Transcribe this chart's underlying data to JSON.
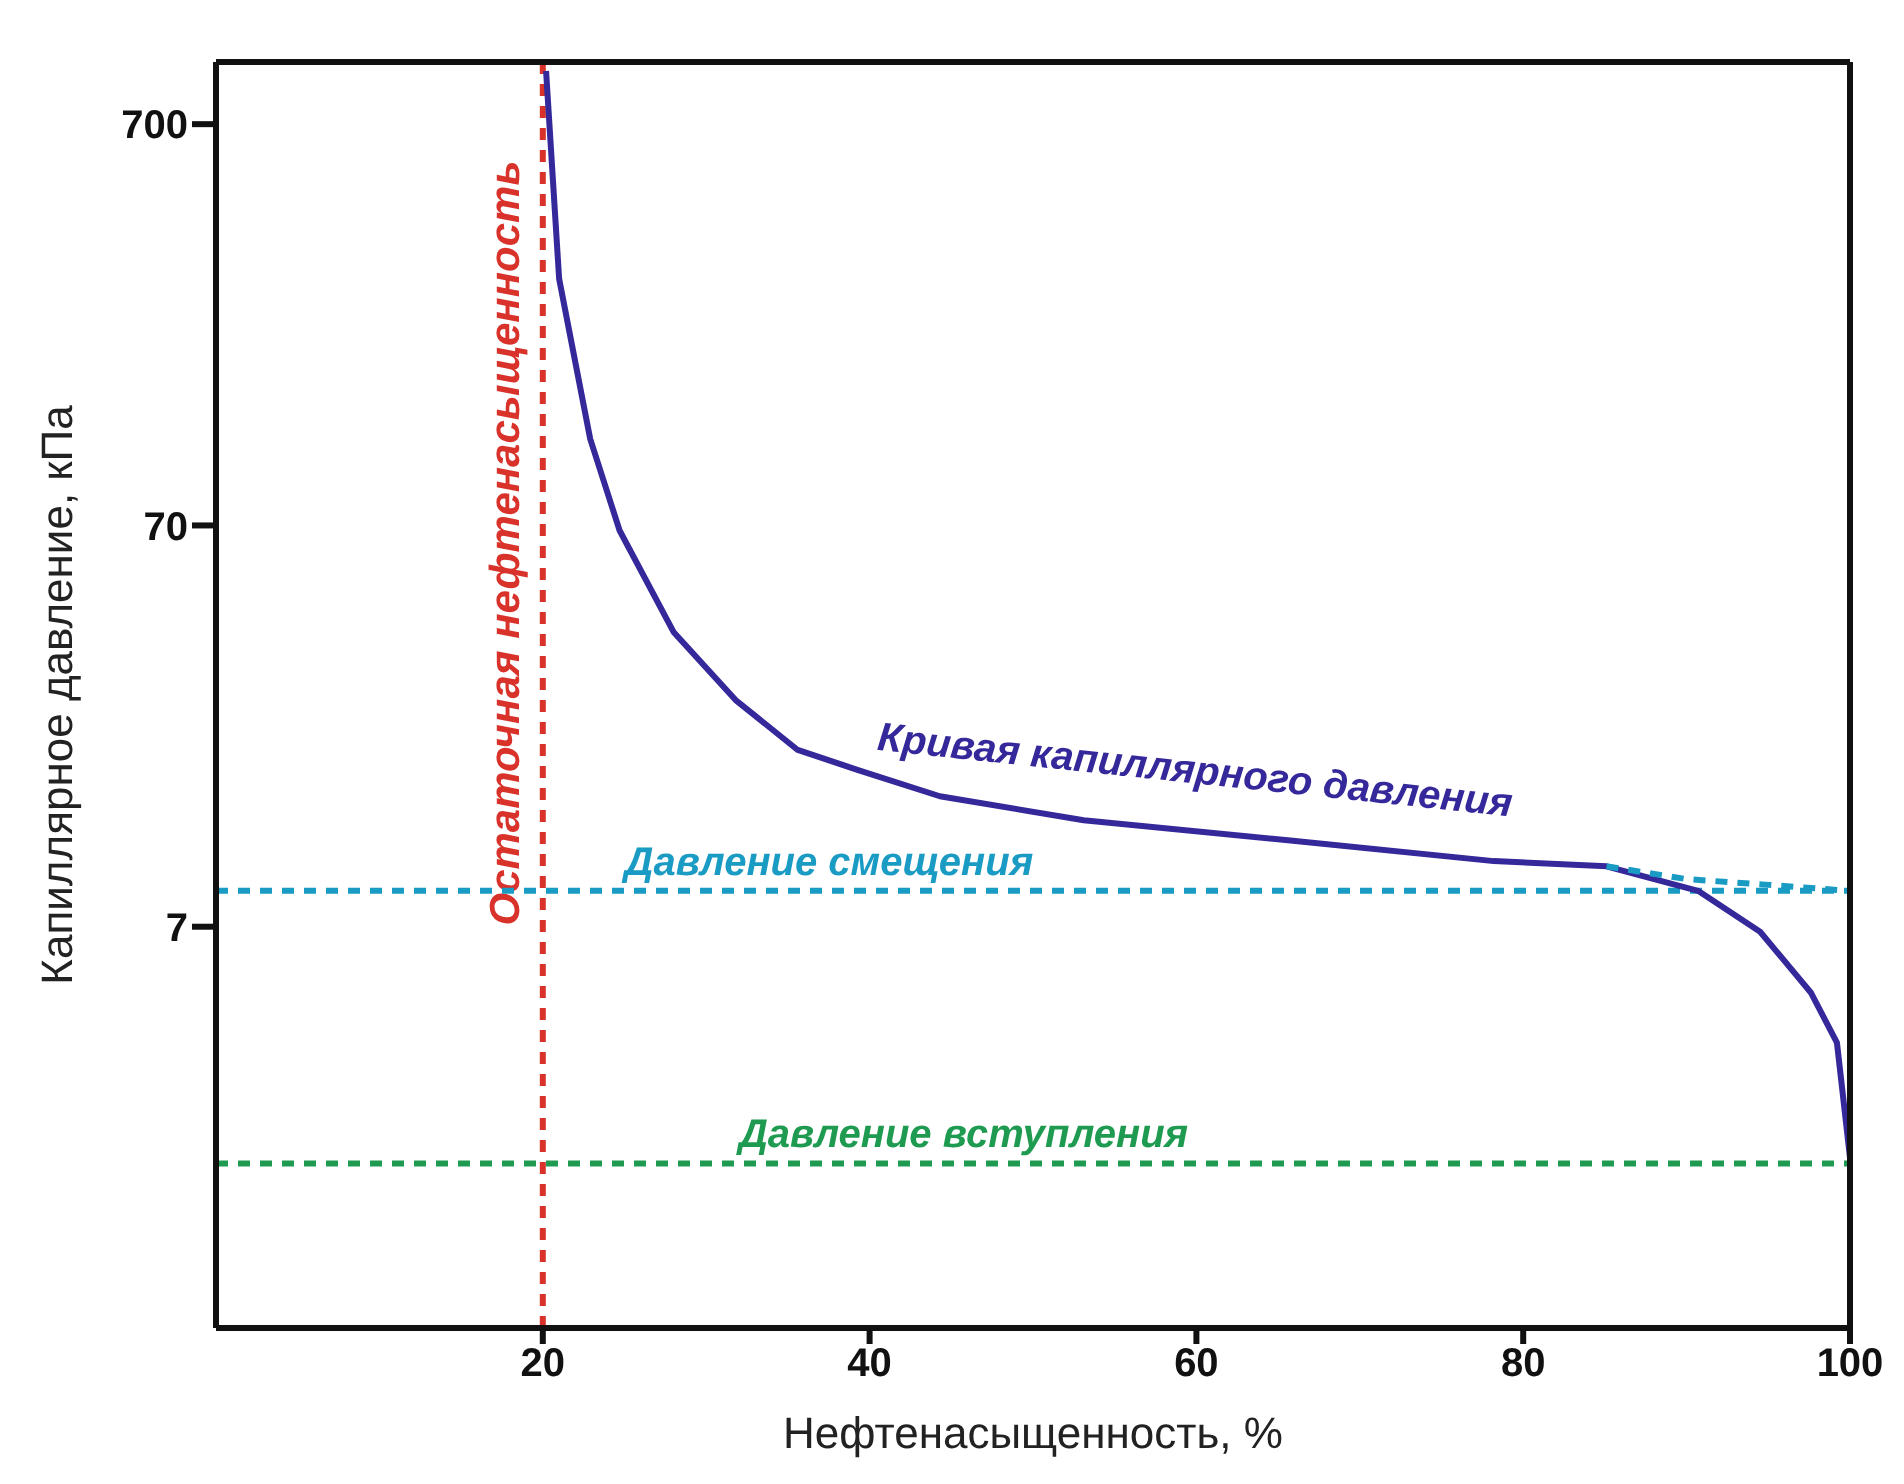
{
  "chart_data": {
    "type": "line",
    "xlabel": "Нефтенасыщенность, %",
    "ylabel": "Капиллярное давление, кПа",
    "log": "y",
    "xlim": [
      0,
      100
    ],
    "xticks": [
      20,
      40,
      60,
      80,
      100
    ],
    "ylim": [
      0.7,
      1000
    ],
    "yticks": [
      7,
      70,
      700
    ],
    "marker": "none",
    "series": [
      {
        "color": "#35289a",
        "line_style": "solid",
        "x": [
          20.2,
          21,
          22.9,
          24.7,
          28,
          31.8,
          35.6,
          39.3,
          44.3,
          53.1,
          65.6,
          78.2,
          85.1,
          90.7,
          94.5,
          97.6,
          99.2,
          100
        ],
        "values": [
          950,
          288,
          115,
          68,
          38,
          25.7,
          19.3,
          17.2,
          14.8,
          12.9,
          11.5,
          10.2,
          9.9,
          8.6,
          6.8,
          4.8,
          3.6,
          1.86
        ]
      },
      {
        "color": "#1a9bc4",
        "line_style": "dashed",
        "x": [
          85.1,
          90,
          95,
          100
        ],
        "values": [
          9.9,
          9.2,
          8.9,
          8.6
        ]
      }
    ],
    "ref_lines": [
      {
        "axis": "x",
        "value": 20,
        "label": "Остаточная нефтенасыщенность",
        "color": "#d8322a",
        "line_style": "dashed"
      },
      {
        "axis": "y",
        "value": 8.6,
        "label": "Давление смещения",
        "color": "#1a9bc4",
        "line_style": "dashed"
      },
      {
        "axis": "y",
        "value": 1.8,
        "label": "Давление вступления",
        "color": "#1e9b50",
        "line_style": "dashed"
      }
    ],
    "annotations": [
      "Кривая капиллярного давления"
    ]
  }
}
